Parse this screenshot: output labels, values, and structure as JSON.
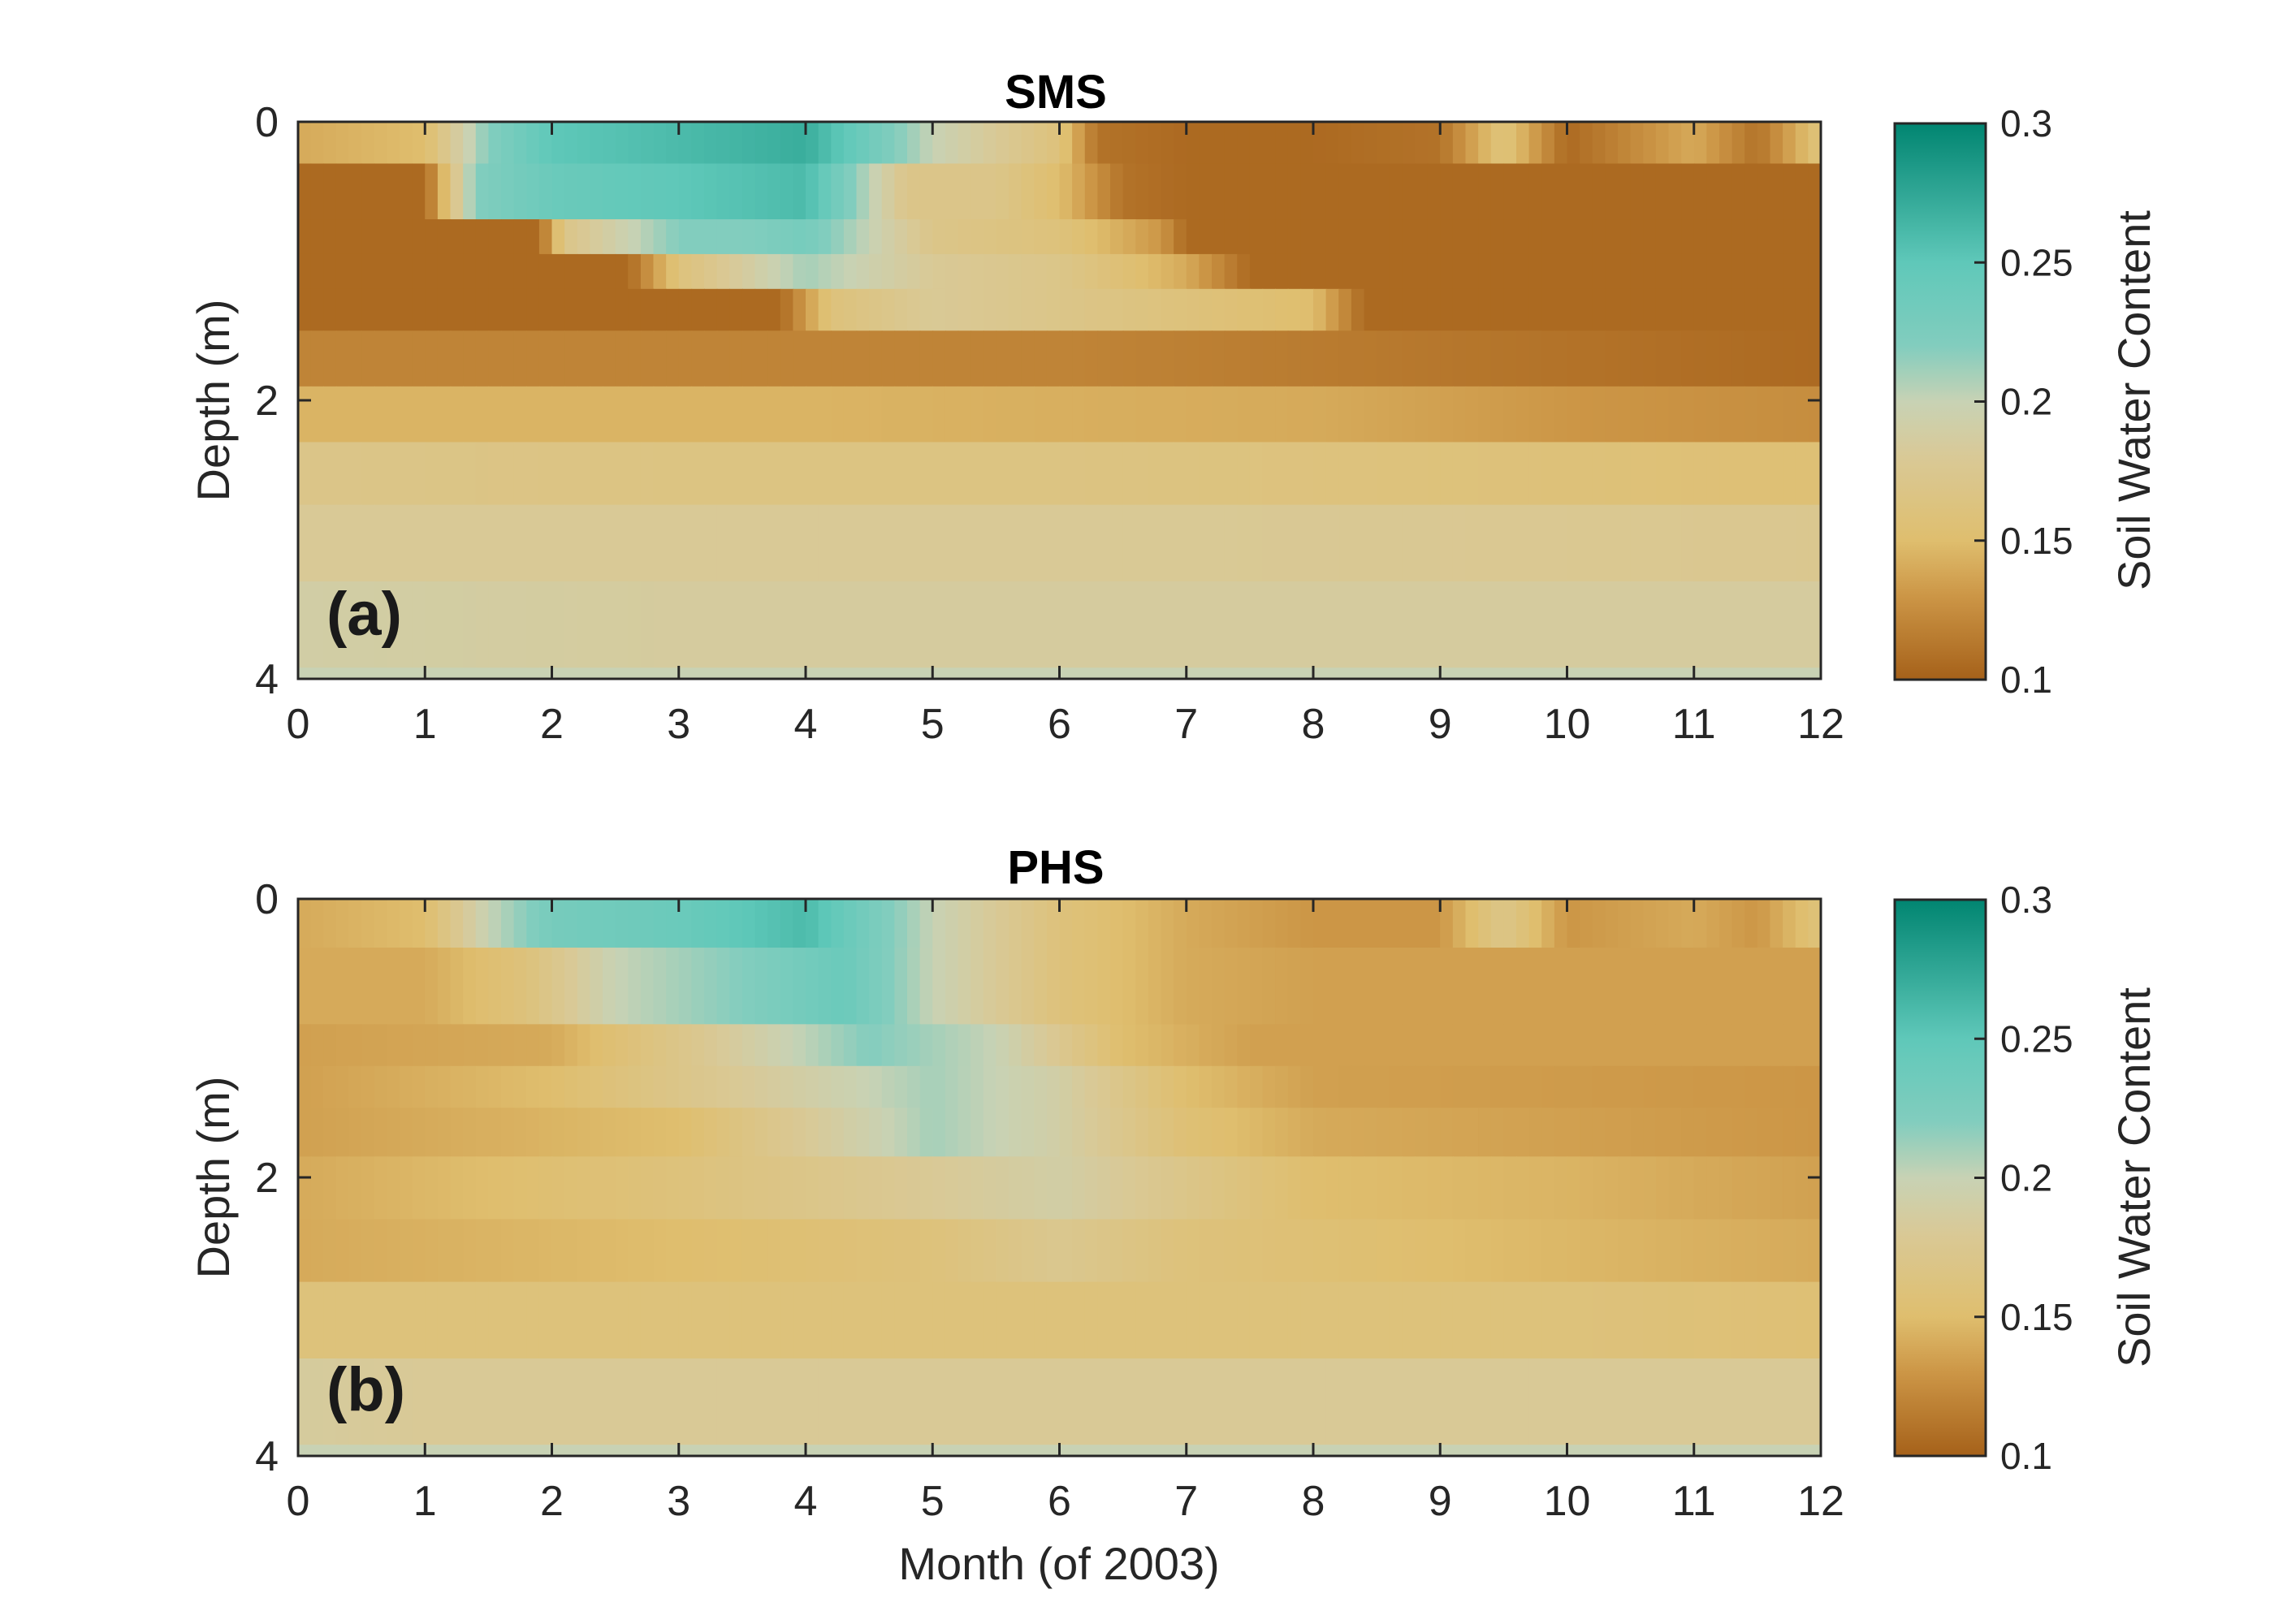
{
  "chart_data": [
    {
      "type": "heatmap",
      "title": "SMS",
      "panel_label": "(a)",
      "xlabel": "",
      "ylabel": "Depth (m)",
      "xlim": [
        0,
        12
      ],
      "ylim": [
        0,
        4
      ],
      "y_reversed": true,
      "x_ticks": [
        0,
        1,
        2,
        3,
        4,
        5,
        6,
        7,
        8,
        9,
        10,
        11,
        12
      ],
      "y_ticks": [
        0,
        2,
        4
      ],
      "colorbar": {
        "label": "Soil Water Content",
        "ticks": [
          "0.1",
          "0.15",
          "0.2",
          "0.25",
          "0.3"
        ],
        "range": [
          0.1,
          0.3
        ]
      },
      "layers": [
        {
          "top": 0.0,
          "bottom": 0.3,
          "months": [
            0,
            1,
            1.5,
            2,
            3,
            4,
            5,
            6,
            6.3,
            7,
            8,
            9,
            9.5,
            10,
            11,
            11.5,
            12
          ],
          "values": [
            0.14,
            0.15,
            0.22,
            0.25,
            0.26,
            0.27,
            0.2,
            0.16,
            0.11,
            0.105,
            0.105,
            0.11,
            0.16,
            0.105,
            0.14,
            0.11,
            0.16
          ]
        },
        {
          "top": 0.3,
          "bottom": 0.7,
          "months": [
            0,
            1.0,
            1.4,
            2,
            3,
            4,
            4.8,
            5.5,
            6,
            6.5,
            7,
            12
          ],
          "values": [
            0.105,
            0.105,
            0.22,
            0.24,
            0.25,
            0.26,
            0.17,
            0.17,
            0.15,
            0.11,
            0.105,
            0.105
          ]
        },
        {
          "top": 0.7,
          "bottom": 0.95,
          "months": [
            0,
            1.9,
            2.1,
            3,
            3.5,
            4,
            5,
            6,
            6.8,
            7,
            12
          ],
          "values": [
            0.105,
            0.105,
            0.17,
            0.22,
            0.22,
            0.23,
            0.17,
            0.16,
            0.13,
            0.105,
            0.105
          ]
        },
        {
          "top": 0.95,
          "bottom": 1.2,
          "months": [
            0,
            2.6,
            3.0,
            4,
            5,
            6,
            7.0,
            7.5,
            12
          ],
          "values": [
            0.105,
            0.105,
            0.16,
            0.21,
            0.18,
            0.17,
            0.14,
            0.105,
            0.105
          ]
        },
        {
          "top": 1.2,
          "bottom": 1.5,
          "months": [
            0,
            3.8,
            4.2,
            5,
            6,
            7,
            8,
            8.4,
            12
          ],
          "values": [
            0.105,
            0.105,
            0.16,
            0.18,
            0.17,
            0.16,
            0.15,
            0.105,
            0.105
          ]
        },
        {
          "top": 1.5,
          "bottom": 1.9,
          "months": [
            0,
            1,
            2,
            4,
            6,
            8,
            12
          ],
          "values": [
            0.12,
            0.12,
            0.12,
            0.12,
            0.12,
            0.115,
            0.105
          ]
        },
        {
          "top": 1.9,
          "bottom": 2.3,
          "months": [
            0,
            4,
            8,
            9,
            10,
            12
          ],
          "values": [
            0.145,
            0.145,
            0.14,
            0.135,
            0.13,
            0.125
          ]
        },
        {
          "top": 2.3,
          "bottom": 2.75,
          "months": [
            0,
            3,
            6,
            9,
            12
          ],
          "values": [
            0.17,
            0.165,
            0.165,
            0.16,
            0.155
          ]
        },
        {
          "top": 2.75,
          "bottom": 3.3,
          "months": [
            0,
            6,
            12
          ],
          "values": [
            0.18,
            0.18,
            0.175
          ]
        },
        {
          "top": 3.3,
          "bottom": 3.92,
          "months": [
            0,
            3,
            6,
            12
          ],
          "values": [
            0.19,
            0.185,
            0.185,
            0.185
          ]
        },
        {
          "top": 3.92,
          "bottom": 4.0,
          "months": [
            0,
            12
          ],
          "values": [
            0.2,
            0.2
          ]
        }
      ]
    },
    {
      "type": "heatmap",
      "title": "PHS",
      "panel_label": "(b)",
      "xlabel": "Month (of 2003)",
      "ylabel": "Depth (m)",
      "xlim": [
        0,
        12
      ],
      "ylim": [
        0,
        4
      ],
      "y_reversed": true,
      "x_ticks": [
        0,
        1,
        2,
        3,
        4,
        5,
        6,
        7,
        8,
        9,
        10,
        11,
        12
      ],
      "y_ticks": [
        0,
        2,
        4
      ],
      "colorbar": {
        "label": "Soil Water Content",
        "ticks": [
          "0.1",
          "0.15",
          "0.2",
          "0.25",
          "0.3"
        ],
        "range": [
          0.1,
          0.3
        ]
      },
      "layers": [
        {
          "top": 0.0,
          "bottom": 0.35,
          "months": [
            0,
            1,
            1.5,
            2,
            3,
            4,
            5,
            6,
            7,
            8,
            9,
            9.5,
            10,
            11,
            11.5,
            12
          ],
          "values": [
            0.14,
            0.15,
            0.2,
            0.23,
            0.24,
            0.26,
            0.2,
            0.16,
            0.14,
            0.13,
            0.13,
            0.17,
            0.13,
            0.14,
            0.13,
            0.16
          ]
        },
        {
          "top": 0.35,
          "bottom": 0.9,
          "months": [
            0,
            1,
            1.8,
            2.5,
            3.5,
            4.3,
            5,
            6,
            7,
            8,
            12
          ],
          "values": [
            0.14,
            0.14,
            0.16,
            0.2,
            0.22,
            0.24,
            0.2,
            0.16,
            0.14,
            0.135,
            0.135
          ]
        },
        {
          "top": 0.9,
          "bottom": 1.2,
          "months": [
            0,
            2,
            3,
            4.5,
            5.5,
            6.5,
            7.5,
            12
          ],
          "values": [
            0.135,
            0.14,
            0.17,
            0.22,
            0.2,
            0.15,
            0.135,
            0.135
          ]
        },
        {
          "top": 1.2,
          "bottom": 1.5,
          "months": [
            0,
            2,
            3,
            5,
            6,
            7,
            8,
            12
          ],
          "values": [
            0.135,
            0.15,
            0.17,
            0.21,
            0.19,
            0.15,
            0.135,
            0.13
          ]
        },
        {
          "top": 1.5,
          "bottom": 1.85,
          "months": [
            0,
            3,
            4,
            5,
            6,
            7,
            8,
            12
          ],
          "values": [
            0.135,
            0.15,
            0.18,
            0.21,
            0.19,
            0.155,
            0.14,
            0.13
          ]
        },
        {
          "top": 1.85,
          "bottom": 2.3,
          "months": [
            0,
            3,
            5,
            6,
            7,
            8,
            10,
            12
          ],
          "values": [
            0.14,
            0.16,
            0.18,
            0.19,
            0.17,
            0.15,
            0.145,
            0.135
          ]
        },
        {
          "top": 2.3,
          "bottom": 2.75,
          "months": [
            0,
            3,
            5,
            6,
            7,
            9,
            12
          ],
          "values": [
            0.14,
            0.15,
            0.16,
            0.175,
            0.16,
            0.15,
            0.14
          ]
        },
        {
          "top": 2.75,
          "bottom": 3.3,
          "months": [
            0,
            6,
            10,
            12
          ],
          "values": [
            0.16,
            0.16,
            0.16,
            0.155
          ]
        },
        {
          "top": 3.3,
          "bottom": 3.92,
          "months": [
            0,
            1,
            3,
            6,
            12
          ],
          "values": [
            0.185,
            0.18,
            0.18,
            0.18,
            0.18
          ]
        },
        {
          "top": 3.92,
          "bottom": 4.0,
          "months": [
            0,
            12
          ],
          "values": [
            0.2,
            0.2
          ]
        }
      ]
    }
  ]
}
